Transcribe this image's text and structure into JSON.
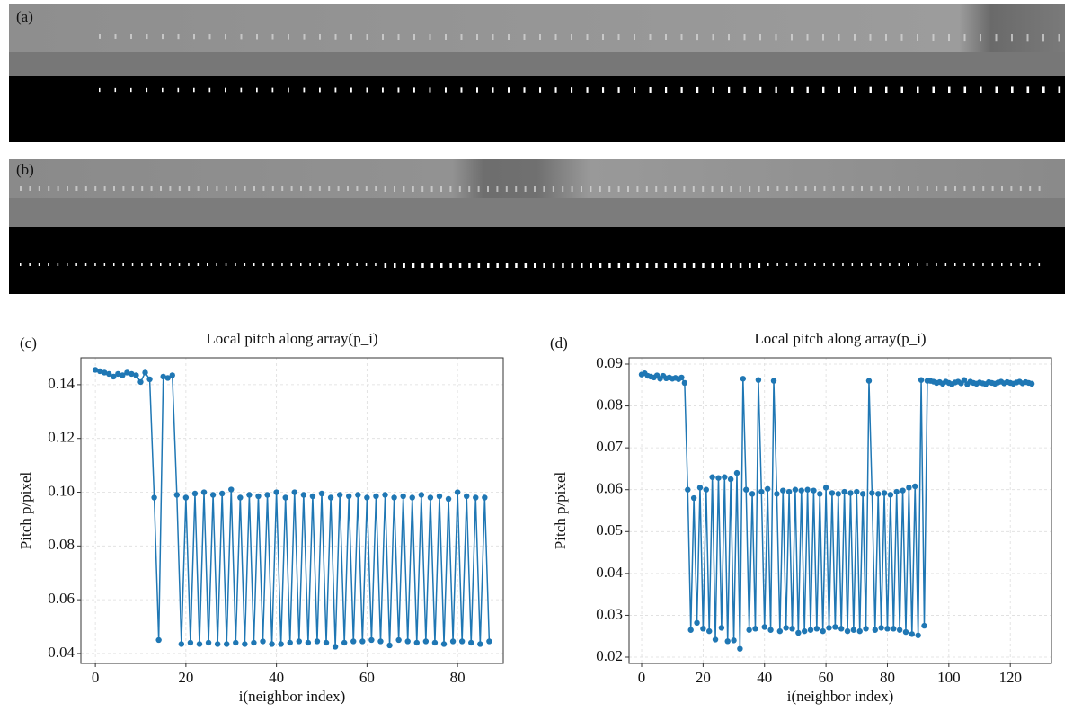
{
  "images": [
    {
      "label": "(a)"
    },
    {
      "label": "(b)"
    }
  ],
  "chart_data": [
    {
      "type": "line",
      "panel_label": "(c)",
      "title": "Local pitch along array(p_i)",
      "x_label": "i(neighbor index)",
      "y_label": "Pitch p/pixel",
      "color": "#1f77b4",
      "grid": true,
      "xlim": [
        -3.2,
        90.1
      ],
      "ylim": [
        0.0363,
        0.15
      ],
      "xticks": [
        0,
        20,
        40,
        60,
        80
      ],
      "yticks": [
        0.04,
        0.06,
        0.08,
        {
          "value": 0.1,
          "label": "0.10"
        },
        0.12,
        0.14
      ],
      "x": [
        0,
        1,
        2,
        3,
        4,
        5,
        6,
        7,
        8,
        9,
        10,
        11,
        12,
        13,
        14,
        15,
        16,
        17,
        18,
        19,
        20,
        21,
        22,
        23,
        24,
        25,
        26,
        27,
        28,
        29,
        30,
        31,
        32,
        33,
        34,
        35,
        36,
        37,
        38,
        39,
        40,
        41,
        42,
        43,
        44,
        45,
        46,
        47,
        48,
        49,
        50,
        51,
        52,
        53,
        54,
        55,
        56,
        57,
        58,
        59,
        60,
        61,
        62,
        63,
        64,
        65,
        66,
        67,
        68,
        69,
        70,
        71,
        72,
        73,
        74,
        75,
        76,
        77,
        78,
        79,
        80,
        81,
        82,
        83,
        84,
        85,
        86,
        87
      ],
      "values": [
        0.1455,
        0.145,
        0.1445,
        0.144,
        0.143,
        0.144,
        0.1435,
        0.1445,
        0.144,
        0.1435,
        0.141,
        0.1445,
        0.142,
        0.098,
        0.045,
        0.143,
        0.1425,
        0.1435,
        0.099,
        0.0435,
        0.098,
        0.044,
        0.0995,
        0.0435,
        0.1,
        0.044,
        0.099,
        0.0435,
        0.0995,
        0.0435,
        0.101,
        0.044,
        0.098,
        0.0435,
        0.099,
        0.044,
        0.0985,
        0.0445,
        0.099,
        0.0435,
        0.1,
        0.0435,
        0.098,
        0.044,
        0.1,
        0.0445,
        0.099,
        0.044,
        0.0985,
        0.0445,
        0.0995,
        0.044,
        0.098,
        0.0425,
        0.099,
        0.044,
        0.0985,
        0.0445,
        0.099,
        0.0445,
        0.098,
        0.045,
        0.0985,
        0.0445,
        0.099,
        0.043,
        0.098,
        0.045,
        0.0985,
        0.0445,
        0.098,
        0.044,
        0.099,
        0.0445,
        0.098,
        0.044,
        0.0985,
        0.0435,
        0.0975,
        0.0445,
        0.1,
        0.0445,
        0.0985,
        0.044,
        0.098,
        0.0435,
        0.098,
        0.0445
      ]
    },
    {
      "type": "line",
      "panel_label": "(d)",
      "title": "Local pitch along array(p_i)",
      "x_label": "i(neighbor index)",
      "y_label": "Pitch p/pixel",
      "color": "#1f77b4",
      "grid": true,
      "xlim": [
        -4.1,
        133.4
      ],
      "ylim": [
        0.0185,
        0.0915
      ],
      "xticks": [
        0,
        20,
        40,
        60,
        80,
        100,
        120
      ],
      "yticks": [
        0.02,
        0.03,
        0.04,
        0.05,
        0.06,
        0.07,
        0.08,
        0.09
      ],
      "x": [
        0,
        1,
        2,
        3,
        4,
        5,
        6,
        7,
        8,
        9,
        10,
        11,
        12,
        13,
        14,
        15,
        16,
        17,
        18,
        19,
        20,
        21,
        22,
        23,
        24,
        25,
        26,
        27,
        28,
        29,
        30,
        31,
        32,
        33,
        34,
        35,
        36,
        37,
        38,
        39,
        40,
        41,
        42,
        43,
        44,
        45,
        46,
        47,
        48,
        49,
        50,
        51,
        52,
        53,
        54,
        55,
        56,
        57,
        58,
        59,
        60,
        61,
        62,
        63,
        64,
        65,
        66,
        67,
        68,
        69,
        70,
        71,
        72,
        73,
        74,
        75,
        76,
        77,
        78,
        79,
        80,
        81,
        82,
        83,
        84,
        85,
        86,
        87,
        88,
        89,
        90,
        91,
        92,
        93,
        94,
        95,
        96,
        97,
        98,
        99,
        100,
        101,
        102,
        103,
        104,
        105,
        106,
        107,
        108,
        109,
        110,
        111,
        112,
        113,
        114,
        115,
        116,
        117,
        118,
        119,
        120,
        121,
        122,
        123,
        124,
        125,
        126,
        127
      ],
      "values": [
        0.0875,
        0.0878,
        0.0872,
        0.087,
        0.0868,
        0.0873,
        0.0865,
        0.0872,
        0.0866,
        0.0868,
        0.0865,
        0.0867,
        0.0864,
        0.0868,
        0.0855,
        0.06,
        0.0265,
        0.058,
        0.0282,
        0.0605,
        0.0268,
        0.06,
        0.0262,
        0.063,
        0.0242,
        0.0628,
        0.027,
        0.063,
        0.0238,
        0.0625,
        0.024,
        0.064,
        0.022,
        0.0865,
        0.06,
        0.0265,
        0.059,
        0.0268,
        0.0862,
        0.0595,
        0.0272,
        0.0602,
        0.0265,
        0.086,
        0.059,
        0.0262,
        0.0598,
        0.027,
        0.0595,
        0.0268,
        0.06,
        0.0258,
        0.0598,
        0.0262,
        0.06,
        0.0265,
        0.0598,
        0.0268,
        0.059,
        0.0262,
        0.0605,
        0.027,
        0.0592,
        0.0272,
        0.059,
        0.0268,
        0.0595,
        0.0262,
        0.0592,
        0.0265,
        0.0595,
        0.0262,
        0.059,
        0.0268,
        0.086,
        0.0592,
        0.0265,
        0.059,
        0.027,
        0.0592,
        0.0268,
        0.0588,
        0.0268,
        0.0595,
        0.0265,
        0.0598,
        0.026,
        0.0605,
        0.0255,
        0.0608,
        0.0252,
        0.0862,
        0.0275,
        0.086,
        0.086,
        0.0858,
        0.0855,
        0.0857,
        0.0853,
        0.0858,
        0.0855,
        0.0852,
        0.0856,
        0.0858,
        0.0854,
        0.0862,
        0.0852,
        0.0858,
        0.0855,
        0.0853,
        0.0856,
        0.0854,
        0.0852,
        0.0857,
        0.0855,
        0.0853,
        0.0856,
        0.0858,
        0.0854,
        0.0857,
        0.0855,
        0.0853,
        0.0856,
        0.0858,
        0.0854,
        0.0857,
        0.0855,
        0.0853
      ]
    }
  ]
}
